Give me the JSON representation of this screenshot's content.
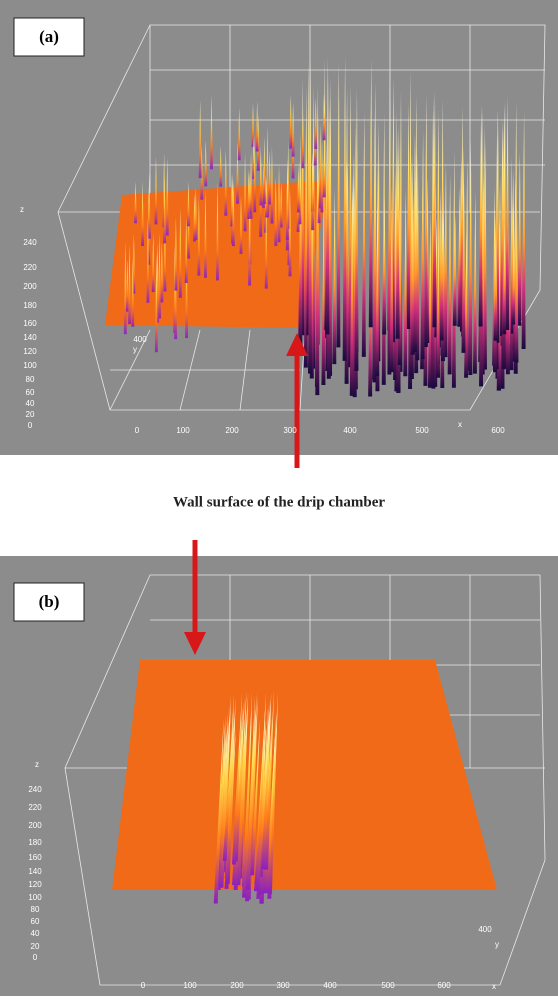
{
  "panels": [
    {
      "label": "(a)",
      "axis_labels": {
        "z": "z",
        "y": "y",
        "x": "x"
      },
      "z_ticks": [
        240,
        220,
        200,
        180,
        160,
        140,
        120,
        100,
        80,
        60,
        40,
        20,
        0
      ],
      "x_ticks": [
        0,
        100,
        200,
        300,
        400,
        500,
        600
      ],
      "y_ticks": [
        400
      ]
    },
    {
      "label": "(b)",
      "axis_labels": {
        "z": "z",
        "y": "y",
        "x": "x"
      },
      "z_ticks": [
        240,
        220,
        200,
        180,
        160,
        140,
        120,
        100,
        80,
        60,
        40,
        20,
        0
      ],
      "x_ticks": [
        0,
        100,
        200,
        300,
        400,
        500,
        600
      ],
      "y_ticks": [
        400
      ]
    }
  ],
  "caption": "Wall surface of the drip chamber"
}
